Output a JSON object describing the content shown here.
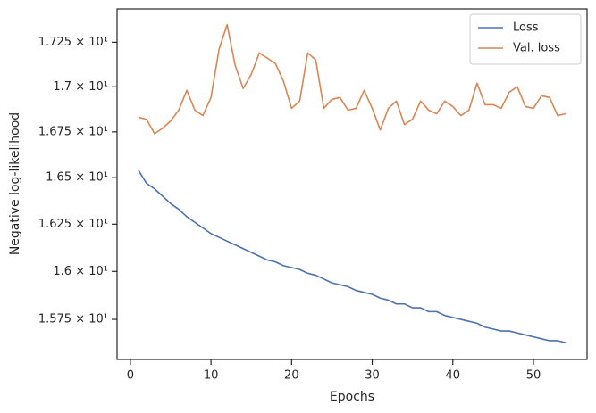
{
  "chart_data": {
    "type": "line",
    "xlabel": "Epochs",
    "ylabel": "Negative log-likelihood",
    "x": [
      1,
      2,
      3,
      4,
      5,
      6,
      7,
      8,
      9,
      10,
      11,
      12,
      13,
      14,
      15,
      16,
      17,
      18,
      19,
      20,
      21,
      22,
      23,
      24,
      25,
      26,
      27,
      28,
      29,
      30,
      31,
      32,
      33,
      34,
      35,
      36,
      37,
      38,
      39,
      40,
      41,
      42,
      43,
      44,
      45,
      46,
      47,
      48,
      49,
      50,
      51,
      52,
      53,
      54
    ],
    "series": [
      {
        "name": "Loss",
        "color": "#4c72b0",
        "values": [
          16.54,
          16.47,
          16.44,
          16.4,
          16.36,
          16.33,
          16.29,
          16.26,
          16.23,
          16.2,
          16.18,
          16.16,
          16.14,
          16.12,
          16.1,
          16.08,
          16.06,
          16.05,
          16.03,
          16.02,
          16.01,
          15.99,
          15.98,
          15.96,
          15.94,
          15.93,
          15.92,
          15.9,
          15.89,
          15.88,
          15.86,
          15.85,
          15.83,
          15.83,
          15.81,
          15.81,
          15.79,
          15.79,
          15.77,
          15.76,
          15.75,
          15.74,
          15.73,
          15.71,
          15.7,
          15.69,
          15.69,
          15.68,
          15.67,
          15.66,
          15.65,
          15.64,
          15.64,
          15.63
        ]
      },
      {
        "name": "Val. loss",
        "color": "#dd8452",
        "values": [
          16.83,
          16.82,
          16.74,
          16.77,
          16.81,
          16.87,
          16.98,
          16.87,
          16.84,
          16.94,
          17.21,
          17.35,
          17.12,
          16.99,
          17.07,
          17.19,
          17.16,
          17.13,
          17.03,
          16.88,
          16.92,
          17.19,
          17.15,
          16.88,
          16.93,
          16.94,
          16.87,
          16.88,
          16.98,
          16.88,
          16.76,
          16.88,
          16.92,
          16.79,
          16.82,
          16.92,
          16.87,
          16.85,
          16.92,
          16.89,
          16.84,
          16.87,
          17.02,
          16.9,
          16.9,
          16.88,
          16.97,
          17.0,
          16.89,
          16.88,
          16.95,
          16.94,
          16.84,
          16.85
        ]
      }
    ],
    "xlim": [
      -1.65,
      56.65
    ],
    "xticks": [
      0,
      10,
      20,
      30,
      40,
      50
    ],
    "ylim": [
      15.544,
      17.44
    ],
    "yscale": "log",
    "yticks": [
      {
        "value": 15.75,
        "label": "1.575 × 10¹"
      },
      {
        "value": 16.0,
        "label": "1.6 × 10¹"
      },
      {
        "value": 16.25,
        "label": "1.625 × 10¹"
      },
      {
        "value": 16.5,
        "label": "1.65 × 10¹"
      },
      {
        "value": 16.75,
        "label": "1.675 × 10¹"
      },
      {
        "value": 17.0,
        "label": "1.7 × 10¹"
      },
      {
        "value": 17.25,
        "label": "1.725 × 10¹"
      }
    ],
    "grid": false,
    "legend": "upper right"
  }
}
